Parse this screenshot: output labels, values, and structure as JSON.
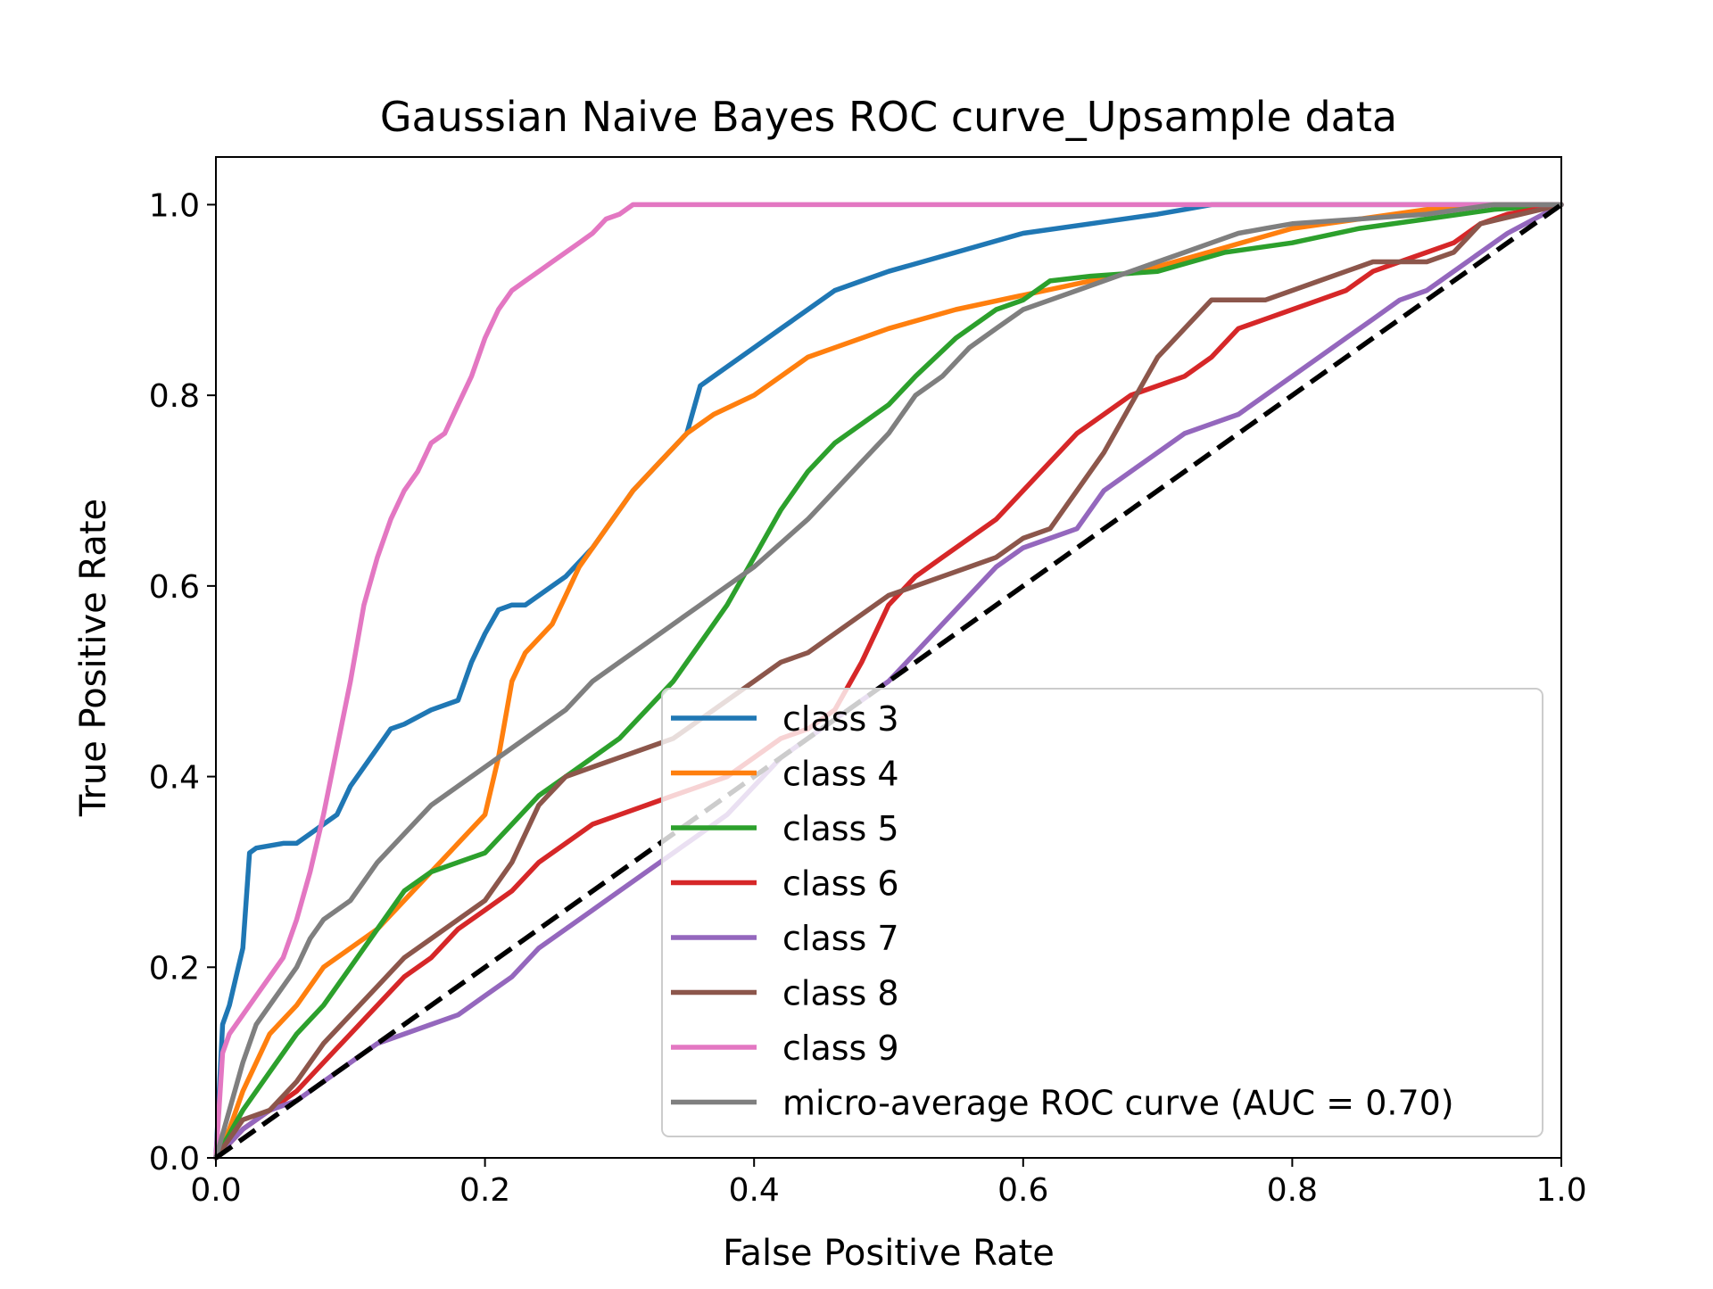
{
  "chart_data": {
    "type": "line",
    "title": "Gaussian Naive Bayes ROC curve_Upsample data",
    "xlabel": "False Positive Rate",
    "ylabel": "True Positive Rate",
    "xlim": [
      0.0,
      1.0
    ],
    "ylim": [
      0.0,
      1.05
    ],
    "xticks": [
      "0.0",
      "0.2",
      "0.4",
      "0.6",
      "0.8",
      "1.0"
    ],
    "yticks": [
      "0.0",
      "0.2",
      "0.4",
      "0.6",
      "0.8",
      "1.0"
    ],
    "grid": false,
    "legend_position": "lower-right",
    "series": [
      {
        "name": "class 3",
        "color": "#1f77b4",
        "x": [
          0,
          0.005,
          0.01,
          0.015,
          0.02,
          0.025,
          0.03,
          0.05,
          0.06,
          0.07,
          0.08,
          0.09,
          0.1,
          0.11,
          0.12,
          0.13,
          0.14,
          0.16,
          0.18,
          0.19,
          0.2,
          0.21,
          0.22,
          0.23,
          0.25,
          0.26,
          0.28,
          0.29,
          0.31,
          0.33,
          0.35,
          0.36,
          0.37,
          0.38,
          0.4,
          0.42,
          0.44,
          0.46,
          0.48,
          0.5,
          0.55,
          0.6,
          0.65,
          0.7,
          0.72,
          0.74,
          1.0
        ],
        "y": [
          0,
          0.14,
          0.16,
          0.19,
          0.22,
          0.32,
          0.325,
          0.33,
          0.33,
          0.34,
          0.35,
          0.36,
          0.39,
          0.41,
          0.43,
          0.45,
          0.455,
          0.47,
          0.48,
          0.52,
          0.55,
          0.575,
          0.58,
          0.58,
          0.6,
          0.61,
          0.64,
          0.66,
          0.7,
          0.73,
          0.76,
          0.81,
          0.82,
          0.83,
          0.85,
          0.87,
          0.89,
          0.91,
          0.92,
          0.93,
          0.95,
          0.97,
          0.98,
          0.99,
          0.995,
          1.0,
          1.0
        ]
      },
      {
        "name": "class 4",
        "color": "#ff7f0e",
        "x": [
          0,
          0.01,
          0.02,
          0.04,
          0.06,
          0.08,
          0.1,
          0.12,
          0.14,
          0.16,
          0.18,
          0.2,
          0.21,
          0.22,
          0.23,
          0.25,
          0.27,
          0.29,
          0.31,
          0.33,
          0.35,
          0.37,
          0.4,
          0.42,
          0.44,
          0.46,
          0.5,
          0.55,
          0.6,
          0.65,
          0.7,
          0.75,
          0.8,
          0.85,
          0.9,
          0.95,
          1.0
        ],
        "y": [
          0,
          0.03,
          0.07,
          0.13,
          0.16,
          0.2,
          0.22,
          0.24,
          0.27,
          0.3,
          0.33,
          0.36,
          0.42,
          0.5,
          0.53,
          0.56,
          0.62,
          0.66,
          0.7,
          0.73,
          0.76,
          0.78,
          0.8,
          0.82,
          0.84,
          0.85,
          0.87,
          0.89,
          0.905,
          0.92,
          0.935,
          0.955,
          0.975,
          0.985,
          0.995,
          1.0,
          1.0
        ]
      },
      {
        "name": "class 5",
        "color": "#2ca02c",
        "x": [
          0,
          0.02,
          0.04,
          0.06,
          0.08,
          0.1,
          0.12,
          0.14,
          0.16,
          0.18,
          0.2,
          0.22,
          0.24,
          0.26,
          0.28,
          0.3,
          0.32,
          0.34,
          0.36,
          0.38,
          0.4,
          0.42,
          0.44,
          0.46,
          0.48,
          0.5,
          0.52,
          0.55,
          0.58,
          0.6,
          0.62,
          0.65,
          0.7,
          0.75,
          0.8,
          0.85,
          0.9,
          0.95,
          1.0
        ],
        "y": [
          0,
          0.05,
          0.09,
          0.13,
          0.16,
          0.2,
          0.24,
          0.28,
          0.3,
          0.31,
          0.32,
          0.35,
          0.38,
          0.4,
          0.42,
          0.44,
          0.47,
          0.5,
          0.54,
          0.58,
          0.63,
          0.68,
          0.72,
          0.75,
          0.77,
          0.79,
          0.82,
          0.86,
          0.89,
          0.9,
          0.92,
          0.925,
          0.93,
          0.95,
          0.96,
          0.975,
          0.985,
          0.995,
          1.0
        ]
      },
      {
        "name": "class 6",
        "color": "#d62728",
        "x": [
          0,
          0.02,
          0.04,
          0.06,
          0.08,
          0.1,
          0.12,
          0.14,
          0.16,
          0.18,
          0.2,
          0.22,
          0.24,
          0.26,
          0.28,
          0.3,
          0.32,
          0.34,
          0.36,
          0.38,
          0.4,
          0.42,
          0.44,
          0.46,
          0.48,
          0.5,
          0.52,
          0.54,
          0.56,
          0.58,
          0.6,
          0.62,
          0.64,
          0.66,
          0.68,
          0.7,
          0.72,
          0.74,
          0.76,
          0.78,
          0.8,
          0.82,
          0.84,
          0.86,
          0.88,
          0.9,
          0.92,
          0.94,
          0.96,
          1.0
        ],
        "y": [
          0,
          0.03,
          0.05,
          0.07,
          0.1,
          0.13,
          0.16,
          0.19,
          0.21,
          0.24,
          0.26,
          0.28,
          0.31,
          0.33,
          0.35,
          0.36,
          0.37,
          0.38,
          0.39,
          0.4,
          0.42,
          0.44,
          0.45,
          0.47,
          0.52,
          0.58,
          0.61,
          0.63,
          0.65,
          0.67,
          0.7,
          0.73,
          0.76,
          0.78,
          0.8,
          0.81,
          0.82,
          0.84,
          0.87,
          0.88,
          0.89,
          0.9,
          0.91,
          0.93,
          0.94,
          0.95,
          0.96,
          0.98,
          0.99,
          1.0
        ]
      },
      {
        "name": "class 7",
        "color": "#9467bd",
        "x": [
          0,
          0.02,
          0.04,
          0.06,
          0.08,
          0.1,
          0.12,
          0.14,
          0.16,
          0.18,
          0.2,
          0.22,
          0.24,
          0.26,
          0.28,
          0.3,
          0.32,
          0.34,
          0.36,
          0.38,
          0.4,
          0.42,
          0.44,
          0.46,
          0.48,
          0.5,
          0.52,
          0.54,
          0.56,
          0.58,
          0.6,
          0.62,
          0.64,
          0.66,
          0.68,
          0.7,
          0.72,
          0.74,
          0.76,
          0.78,
          0.8,
          0.82,
          0.84,
          0.86,
          0.88,
          0.9,
          0.92,
          0.94,
          0.96,
          1.0
        ],
        "y": [
          0,
          0.03,
          0.05,
          0.06,
          0.08,
          0.1,
          0.12,
          0.13,
          0.14,
          0.15,
          0.17,
          0.19,
          0.22,
          0.24,
          0.26,
          0.28,
          0.3,
          0.32,
          0.34,
          0.36,
          0.39,
          0.42,
          0.44,
          0.46,
          0.48,
          0.5,
          0.53,
          0.56,
          0.59,
          0.62,
          0.64,
          0.65,
          0.66,
          0.7,
          0.72,
          0.74,
          0.76,
          0.77,
          0.78,
          0.8,
          0.82,
          0.84,
          0.86,
          0.88,
          0.9,
          0.91,
          0.93,
          0.95,
          0.97,
          1.0
        ]
      },
      {
        "name": "class 8",
        "color": "#8c564b",
        "x": [
          0,
          0.02,
          0.04,
          0.06,
          0.08,
          0.1,
          0.12,
          0.14,
          0.16,
          0.18,
          0.2,
          0.22,
          0.24,
          0.26,
          0.28,
          0.3,
          0.32,
          0.34,
          0.36,
          0.38,
          0.4,
          0.42,
          0.44,
          0.46,
          0.48,
          0.5,
          0.52,
          0.54,
          0.56,
          0.58,
          0.6,
          0.62,
          0.64,
          0.66,
          0.68,
          0.7,
          0.72,
          0.74,
          0.76,
          0.78,
          0.8,
          0.82,
          0.84,
          0.86,
          0.88,
          0.9,
          0.92,
          0.94,
          1.0
        ],
        "y": [
          0,
          0.04,
          0.05,
          0.08,
          0.12,
          0.15,
          0.18,
          0.21,
          0.23,
          0.25,
          0.27,
          0.31,
          0.37,
          0.4,
          0.41,
          0.42,
          0.43,
          0.44,
          0.46,
          0.48,
          0.5,
          0.52,
          0.53,
          0.55,
          0.57,
          0.59,
          0.6,
          0.61,
          0.62,
          0.63,
          0.65,
          0.66,
          0.7,
          0.74,
          0.79,
          0.84,
          0.87,
          0.9,
          0.9,
          0.9,
          0.91,
          0.92,
          0.93,
          0.94,
          0.94,
          0.94,
          0.95,
          0.98,
          1.0
        ]
      },
      {
        "name": "class 9",
        "color": "#e377c2",
        "x": [
          0,
          0.005,
          0.01,
          0.02,
          0.03,
          0.04,
          0.05,
          0.06,
          0.07,
          0.08,
          0.09,
          0.1,
          0.11,
          0.12,
          0.13,
          0.14,
          0.15,
          0.16,
          0.17,
          0.18,
          0.19,
          0.2,
          0.21,
          0.22,
          0.23,
          0.24,
          0.25,
          0.26,
          0.27,
          0.28,
          0.29,
          0.3,
          0.31,
          0.35,
          0.4,
          0.5,
          0.6,
          0.7,
          0.8,
          0.9,
          1.0
        ],
        "y": [
          0,
          0.11,
          0.13,
          0.15,
          0.17,
          0.19,
          0.21,
          0.25,
          0.3,
          0.36,
          0.43,
          0.5,
          0.58,
          0.63,
          0.67,
          0.7,
          0.72,
          0.75,
          0.76,
          0.79,
          0.82,
          0.86,
          0.89,
          0.91,
          0.92,
          0.93,
          0.94,
          0.95,
          0.96,
          0.97,
          0.985,
          0.99,
          1.0,
          1.0,
          1.0,
          1.0,
          1.0,
          1.0,
          1.0,
          1.0,
          1.0
        ]
      },
      {
        "name": "micro-average ROC curve (AUC = 0.70)",
        "color": "#7f7f7f",
        "x": [
          0,
          0.01,
          0.02,
          0.03,
          0.04,
          0.05,
          0.06,
          0.07,
          0.08,
          0.1,
          0.12,
          0.14,
          0.16,
          0.18,
          0.2,
          0.22,
          0.24,
          0.26,
          0.28,
          0.3,
          0.32,
          0.34,
          0.36,
          0.38,
          0.4,
          0.42,
          0.44,
          0.46,
          0.48,
          0.5,
          0.52,
          0.54,
          0.56,
          0.58,
          0.6,
          0.62,
          0.64,
          0.66,
          0.68,
          0.7,
          0.72,
          0.74,
          0.76,
          0.78,
          0.8,
          0.85,
          0.9,
          0.95,
          1.0
        ],
        "y": [
          0,
          0.05,
          0.1,
          0.14,
          0.16,
          0.18,
          0.2,
          0.23,
          0.25,
          0.27,
          0.31,
          0.34,
          0.37,
          0.39,
          0.41,
          0.43,
          0.45,
          0.47,
          0.5,
          0.52,
          0.54,
          0.56,
          0.58,
          0.6,
          0.62,
          0.645,
          0.67,
          0.7,
          0.73,
          0.76,
          0.8,
          0.82,
          0.85,
          0.87,
          0.89,
          0.9,
          0.91,
          0.92,
          0.93,
          0.94,
          0.95,
          0.96,
          0.97,
          0.975,
          0.98,
          0.985,
          0.99,
          1.0,
          1.0
        ]
      }
    ],
    "reference_line": {
      "x": [
        0,
        1
      ],
      "y": [
        0,
        1
      ],
      "color": "#000000",
      "style": "dashed"
    }
  }
}
